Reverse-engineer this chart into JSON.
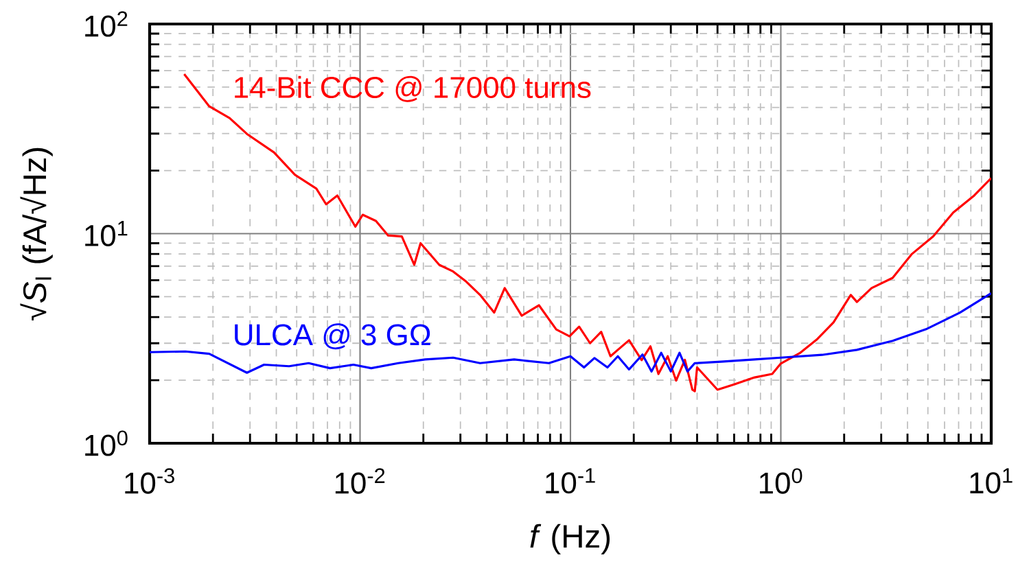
{
  "chart_data": {
    "type": "line",
    "xlabel": "*f* (Hz)",
    "ylabel": "√*S*$_{I}$ (fA/√Hz)",
    "log": "xy",
    "grid": true,
    "legend": false,
    "xlim": [
      0.001,
      10
    ],
    "ylim": [
      1,
      100
    ],
    "xticks": [
      {
        "value": 0.001,
        "label": "10$^{-3}$"
      },
      {
        "value": 0.01,
        "label": "10$^{-2}$"
      },
      {
        "value": 0.1,
        "label": "10$^{-1}$"
      },
      {
        "value": 1,
        "label": "10$^{0}$"
      },
      {
        "value": 10,
        "label": "10$^{1}$"
      }
    ],
    "yticks": [
      {
        "value": 1,
        "label": "10$^{0}$"
      },
      {
        "value": 10,
        "label": "10$^{1}$"
      },
      {
        "value": 100,
        "label": "10$^{2}$"
      }
    ],
    "series": [
      {
        "name": "14-Bit CCC @ 17000 turns",
        "color": "#ff0000",
        "x": [
          0.00146,
          0.00192,
          0.0024,
          0.0029,
          0.0039,
          0.0049,
          0.0062,
          0.0069,
          0.0078,
          0.0095,
          0.0103,
          0.0119,
          0.0136,
          0.0158,
          0.0181,
          0.0194,
          0.0238,
          0.0277,
          0.032,
          0.0372,
          0.0434,
          0.0487,
          0.0587,
          0.0709,
          0.0856,
          0.099,
          0.11,
          0.124,
          0.14,
          0.155,
          0.168,
          0.19,
          0.218,
          0.24,
          0.262,
          0.29,
          0.318,
          0.35,
          0.38,
          0.39,
          0.4,
          0.5,
          0.6,
          0.75,
          0.91,
          1.0,
          1.23,
          1.48,
          1.78,
          2.15,
          2.3,
          2.7,
          3.4,
          4.2,
          5.3,
          6.6,
          8.3,
          10
        ],
        "values": [
          57.7,
          40.5,
          35.6,
          29.9,
          24.4,
          19.1,
          16.4,
          13.8,
          15.2,
          10.8,
          12.3,
          11.5,
          9.8,
          9.7,
          7.1,
          9.0,
          7.1,
          6.6,
          5.9,
          5.1,
          4.2,
          5.5,
          4.06,
          4.55,
          3.49,
          3.24,
          3.6,
          3.0,
          3.4,
          2.6,
          2.79,
          3.1,
          2.49,
          2.9,
          2.14,
          2.6,
          1.99,
          2.5,
          1.8,
          1.77,
          2.3,
          1.8,
          1.91,
          2.06,
          2.14,
          2.4,
          2.69,
          3.12,
          3.77,
          5.1,
          4.72,
          5.5,
          6.15,
          8.0,
          9.7,
          12.6,
          15.2,
          18.4
        ]
      },
      {
        "name": "ULCA @ 3 GΩ",
        "color": "#0000ff",
        "x": [
          0.001,
          0.00148,
          0.00192,
          0.0029,
          0.0035,
          0.0046,
          0.0057,
          0.0072,
          0.0093,
          0.0113,
          0.0152,
          0.0204,
          0.0277,
          0.0372,
          0.054,
          0.079,
          0.1,
          0.116,
          0.13,
          0.15,
          0.168,
          0.19,
          0.22,
          0.243,
          0.27,
          0.3,
          0.33,
          0.36,
          0.39,
          0.52,
          0.75,
          1.0,
          1.57,
          2.3,
          3.4,
          4.9,
          7.1,
          10
        ],
        "values": [
          2.72,
          2.74,
          2.67,
          2.17,
          2.37,
          2.33,
          2.41,
          2.28,
          2.37,
          2.28,
          2.41,
          2.51,
          2.56,
          2.41,
          2.51,
          2.41,
          2.6,
          2.3,
          2.55,
          2.3,
          2.6,
          2.25,
          2.65,
          2.2,
          2.7,
          2.2,
          2.7,
          2.2,
          2.41,
          2.45,
          2.51,
          2.56,
          2.64,
          2.79,
          3.08,
          3.5,
          4.2,
          5.2
        ]
      }
    ]
  }
}
